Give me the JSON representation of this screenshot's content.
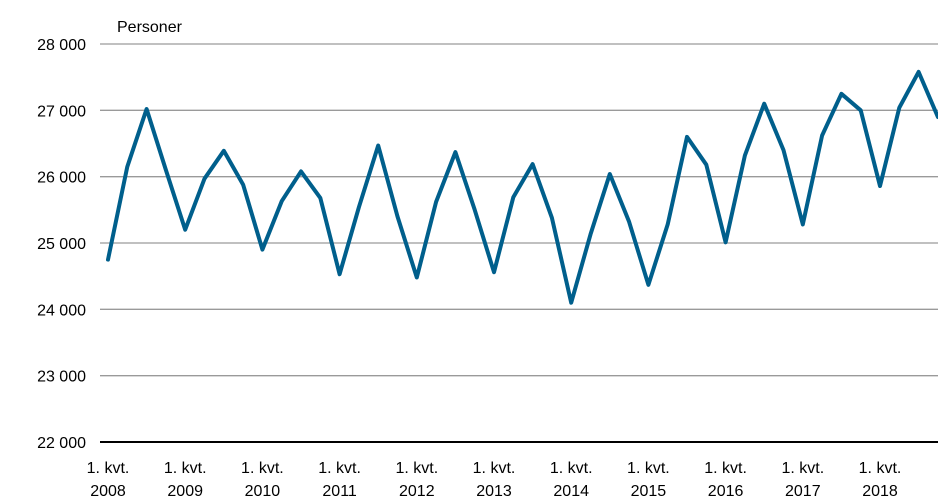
{
  "chart_data": {
    "type": "line",
    "unit_label": "Personer",
    "ylim": [
      22000,
      28000
    ],
    "yticks": [
      22000,
      23000,
      24000,
      25000,
      26000,
      27000,
      28000
    ],
    "ytick_labels": [
      "22 000",
      "23 000",
      "24 000",
      "25 000",
      "26 000",
      "27 000",
      "28 000"
    ],
    "grid": true,
    "x_labels": [
      {
        "line1": "1. kvt.",
        "line2": "2008"
      },
      {
        "line1": "1. kvt.",
        "line2": "2009"
      },
      {
        "line1": "1. kvt.",
        "line2": "2010"
      },
      {
        "line1": "1. kvt.",
        "line2": "2011"
      },
      {
        "line1": "1. kvt.",
        "line2": "2012"
      },
      {
        "line1": "1. kvt.",
        "line2": "2013"
      },
      {
        "line1": "1. kvt.",
        "line2": "2014"
      },
      {
        "line1": "1. kvt.",
        "line2": "2015"
      },
      {
        "line1": "1. kvt.",
        "line2": "2016"
      },
      {
        "line1": "1. kvt.",
        "line2": "2017"
      },
      {
        "line1": "1. kvt.",
        "line2": "2018"
      }
    ],
    "series": [
      {
        "color": "#005F8C",
        "values": [
          24750,
          26150,
          27020,
          26100,
          25200,
          25970,
          26390,
          25880,
          24900,
          25630,
          26080,
          25680,
          24530,
          25540,
          26470,
          25400,
          24480,
          25620,
          26370,
          25500,
          24560,
          25690,
          26190,
          25380,
          24100,
          25130,
          26040,
          25320,
          24370,
          25280,
          26600,
          26180,
          25010,
          26320,
          27100,
          26400,
          25280,
          26620,
          27250,
          27000,
          25860,
          27040,
          27580,
          26900
        ]
      }
    ]
  }
}
